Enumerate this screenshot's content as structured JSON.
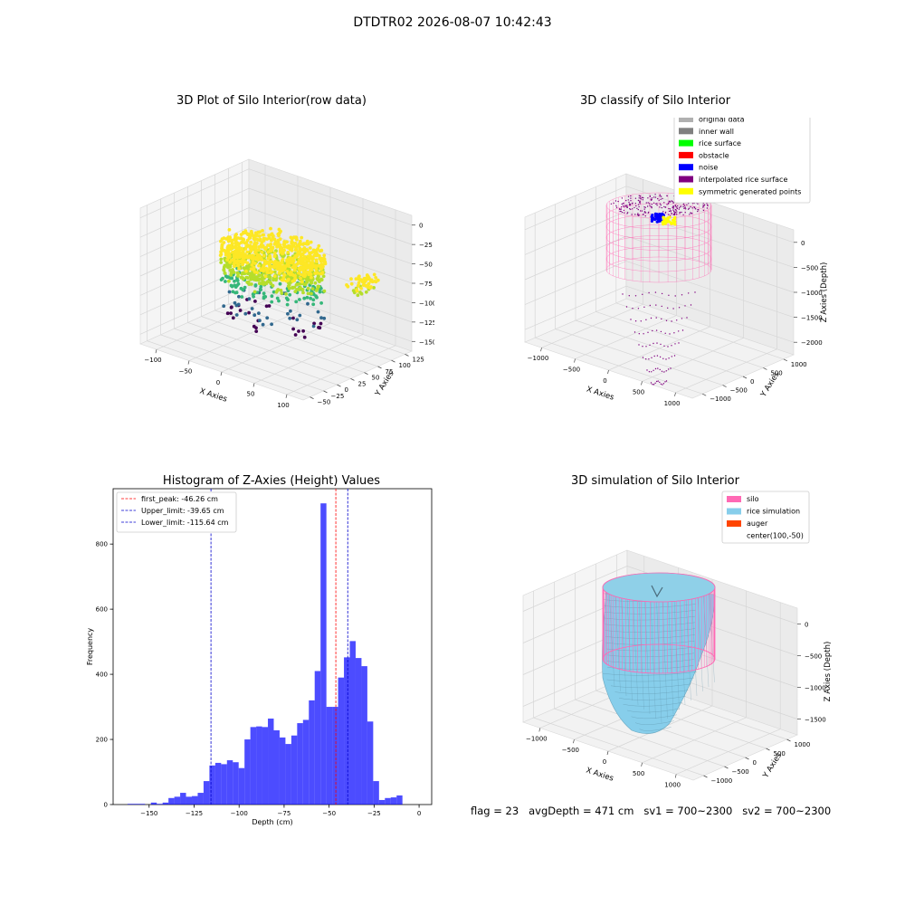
{
  "suptitle": "DTDTR02 2026-08-07 10:42:43",
  "chart_data": [
    {
      "type": "scatter",
      "title": "3D Plot of Silo Interior(row data)",
      "xlabel": "X Axies",
      "ylabel": "Y Axies",
      "zlabel": "Z Axies (Depth)",
      "x_ticks": [
        "−100",
        "−50",
        "0",
        "50",
        "100"
      ],
      "y_ticks": [
        "−50",
        "−25",
        "0",
        "25",
        "50",
        "75",
        "100",
        "125"
      ],
      "z_ticks": [
        "0",
        "−25",
        "−50",
        "−75",
        "−100",
        "−125",
        "−150"
      ],
      "xlim": [
        -110,
        110
      ],
      "ylim": [
        -60,
        140
      ],
      "zlim": [
        -160,
        0
      ],
      "colormap": "viridis",
      "colors": [
        "#440154",
        "#31688e",
        "#35b779",
        "#b5de2b",
        "#fde725"
      ]
    },
    {
      "type": "scatter",
      "title": "3D classify of Silo Interior",
      "xlabel": "X Axies",
      "ylabel": "Y Axies",
      "zlabel": "Z Axies (Depth)",
      "x_ticks": [
        "−1000",
        "−500",
        "0",
        "500",
        "1000"
      ],
      "y_ticks": [
        "−1000",
        "−500",
        "0",
        "500",
        "1000"
      ],
      "z_ticks": [
        "0",
        "−500",
        "−1000",
        "−1500",
        "−2000"
      ],
      "legend_position": "top-right",
      "legend": [
        {
          "label": "original data",
          "color": "#b0b0b0"
        },
        {
          "label": "inner wall",
          "color": "#808080"
        },
        {
          "label": "rice surface",
          "color": "#00ff00"
        },
        {
          "label": "obstacle",
          "color": "#ff0000"
        },
        {
          "label": "noise",
          "color": "#0000ff"
        },
        {
          "label": "interpolated rice surface",
          "color": "#800080"
        },
        {
          "label": "symmetric generated points",
          "color": "#ffff00"
        }
      ],
      "wall_color": "#ff69b4"
    },
    {
      "type": "bar",
      "title": "Histogram of Z-Axies (Height) Values",
      "xlabel": "Depth (cm)",
      "ylabel": "Frequency",
      "xlim": [
        -170,
        7
      ],
      "ylim": [
        0,
        970
      ],
      "x_ticks": [
        -150,
        -125,
        -100,
        -75,
        -50,
        -25,
        0
      ],
      "y_ticks": [
        0,
        200,
        400,
        600,
        800
      ],
      "bin_start": -162,
      "bin_width": 3.25,
      "values": [
        2,
        2,
        2,
        0,
        6,
        2,
        6,
        20,
        24,
        36,
        24,
        26,
        36,
        72,
        120,
        128,
        124,
        136,
        130,
        112,
        200,
        238,
        240,
        238,
        264,
        228,
        206,
        186,
        212,
        250,
        260,
        320,
        410,
        925,
        300,
        300,
        390,
        452,
        502,
        450,
        425,
        255,
        72,
        14,
        20,
        22,
        28
      ],
      "bar_color": "#0000ff",
      "lines": [
        {
          "label": "first_peak: -46.26 cm",
          "x": -46.26,
          "color": "#ff0000"
        },
        {
          "label": "Upper_limit: -39.65 cm",
          "x": -39.65,
          "color": "#0000cc"
        },
        {
          "label": "Lower_limit: -115.64 cm",
          "x": -115.64,
          "color": "#0000cc"
        }
      ],
      "legend_position": "top-left"
    },
    {
      "type": "area",
      "title": "3D simulation of Silo Interior",
      "xlabel": "X Axies",
      "ylabel": "Y Axies",
      "zlabel": "Z Axies (Depth)",
      "x_ticks": [
        "−1000",
        "−500",
        "0",
        "500",
        "1000"
      ],
      "y_ticks": [
        "−1000",
        "−500",
        "0",
        "500",
        "1000"
      ],
      "z_ticks": [
        "0",
        "−500",
        "−1000",
        "−1500"
      ],
      "legend_position": "top-right",
      "legend": [
        {
          "label": "silo",
          "color": "#ff69b4"
        },
        {
          "label": "rice simulation",
          "color": "#87ceeb"
        },
        {
          "label": "auger",
          "color": "#ff4500"
        },
        {
          "label": "center(100,-50)",
          "color": ""
        }
      ]
    }
  ],
  "footer": "flag = 23   avgDepth = 471 cm   sv1 = 700~2300   sv2 = 700~2300"
}
